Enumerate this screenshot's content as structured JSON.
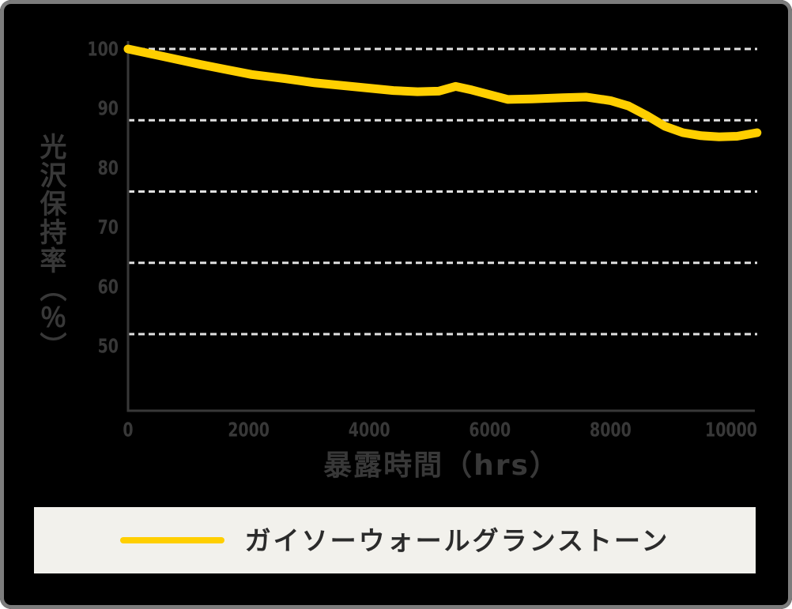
{
  "chart_data": {
    "type": "line",
    "title": "",
    "xlabel": "暴露時間（hrs）",
    "ylabel": "光沢保持率（％）",
    "x_ticks": [
      0,
      2000,
      4000,
      6000,
      8000,
      10000
    ],
    "y_ticks": [
      100,
      90,
      80,
      70,
      60,
      50
    ],
    "gridline_values": [
      100,
      88,
      76,
      64,
      52
    ],
    "xlim": [
      0,
      10430
    ],
    "ylim": [
      40,
      100
    ],
    "grid": "horizontal-dashed",
    "legend_position": "bottom",
    "series": [
      {
        "name": "ガイソーウォールグランストーン",
        "color": "#ffcf00",
        "points": [
          [
            0,
            100
          ],
          [
            600,
            98.7
          ],
          [
            1200,
            97.4
          ],
          [
            1600,
            96.6
          ],
          [
            2050,
            95.7
          ],
          [
            2600,
            95.0
          ],
          [
            3100,
            94.3
          ],
          [
            3600,
            93.8
          ],
          [
            4000,
            93.4
          ],
          [
            4400,
            93.0
          ],
          [
            4800,
            92.8
          ],
          [
            5150,
            92.9
          ],
          [
            5430,
            93.7
          ],
          [
            5700,
            93.1
          ],
          [
            6000,
            92.3
          ],
          [
            6300,
            91.5
          ],
          [
            6700,
            91.6
          ],
          [
            7200,
            91.8
          ],
          [
            7600,
            91.9
          ],
          [
            8000,
            91.3
          ],
          [
            8300,
            90.4
          ],
          [
            8600,
            88.8
          ],
          [
            8900,
            87.0
          ],
          [
            9200,
            85.9
          ],
          [
            9500,
            85.4
          ],
          [
            9800,
            85.2
          ],
          [
            10100,
            85.3
          ],
          [
            10430,
            85.9
          ]
        ]
      }
    ]
  },
  "legend": {
    "label": "ガイソーウォールグランストーン",
    "swatch_color": "#ffcf00"
  },
  "colors": {
    "background": "#000000",
    "card_border": "#7c7c7c",
    "axis": "#383838",
    "tick_text": "#383838",
    "title_text": "#383838",
    "gridline": "#e0e0e0",
    "line": "#ffcf00",
    "legend_bg": "#f2f1ec",
    "legend_text": "#2b2b2b"
  }
}
